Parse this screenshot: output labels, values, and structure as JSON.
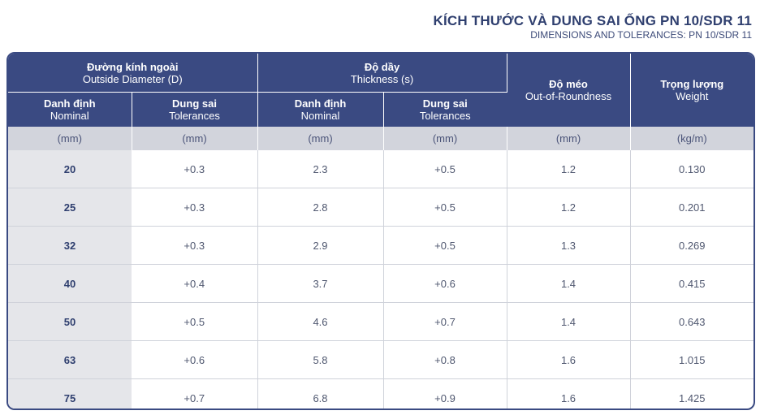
{
  "title": {
    "main": "KÍCH THƯỚC VÀ DUNG SAI ỐNG PN 10/SDR 11",
    "sub": "DIMENSIONS AND TOLERANCES: PN 10/SDR 11"
  },
  "header": {
    "outside_diameter": {
      "vi": "Đường kính ngoài",
      "en": "Outside Diameter (D)"
    },
    "thickness": {
      "vi": "Độ dầy",
      "en": "Thickness (s)"
    },
    "out_of_roundness": {
      "vi": "Độ méo",
      "en": "Out-of-Roundness"
    },
    "weight": {
      "vi": "Trọng lượng",
      "en": "Weight"
    },
    "nominal": {
      "vi": "Danh định",
      "en": "Nominal"
    },
    "tolerances": {
      "vi": "Dung sai",
      "en": "Tolerances"
    }
  },
  "units": [
    "(mm)",
    "(mm)",
    "(mm)",
    "(mm)",
    "(mm)",
    "(kg/m)"
  ],
  "rows": [
    [
      "20",
      "+0.3",
      "2.3",
      "+0.5",
      "1.2",
      "0.130"
    ],
    [
      "25",
      "+0.3",
      "2.8",
      "+0.5",
      "1.2",
      "0.201"
    ],
    [
      "32",
      "+0.3",
      "2.9",
      "+0.5",
      "1.3",
      "0.269"
    ],
    [
      "40",
      "+0.4",
      "3.7",
      "+0.6",
      "1.4",
      "0.415"
    ],
    [
      "50",
      "+0.5",
      "4.6",
      "+0.7",
      "1.4",
      "0.643"
    ],
    [
      "63",
      "+0.6",
      "5.8",
      "+0.8",
      "1.6",
      "1.015"
    ],
    [
      "75",
      "+0.7",
      "6.8",
      "+0.9",
      "1.6",
      "1.425"
    ]
  ],
  "colors": {
    "header_bg": "#3a4a82",
    "units_bg": "#d2d4dc",
    "nominal_col_bg": "#e5e6ea",
    "title_text": "#2f3f6f"
  }
}
